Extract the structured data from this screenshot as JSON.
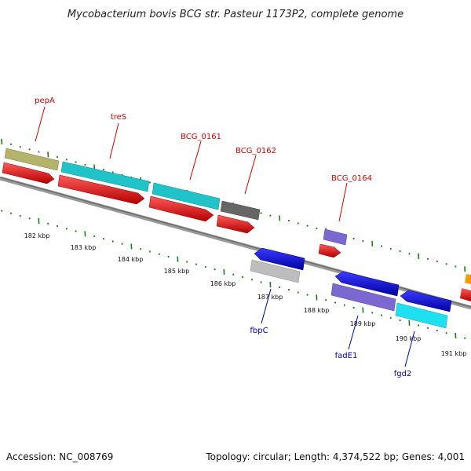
{
  "title": "Mycobacterium bovis BCG str. Pasteur 1173P2, complete genome",
  "footer": {
    "accession": "Accession: NC_008769",
    "summary": "Topology: circular; Length: 4,374,522 bp; Genes: 4,001"
  },
  "colors": {
    "backbone": "#808080",
    "tick": "#1f7a1f",
    "label_top": "#cc0000",
    "label_bottom": "#0000aa"
  },
  "scale_ticks": [
    "182 kbp",
    "183 kbp",
    "184 kbp",
    "185 kbp",
    "186 kbp",
    "187 kbp",
    "188 kbp",
    "189 kbp",
    "190 kbp",
    "191 kbp"
  ],
  "genes_top": [
    {
      "name": "pepA",
      "color": "#e60000",
      "feature_color": "#b3b36b"
    },
    {
      "name": "treS",
      "color": "#e60000",
      "feature_color": "#20c4c8"
    },
    {
      "name": "BCG_0161",
      "color": "#e60000",
      "feature_color": "#20c4c8"
    },
    {
      "name": "BCG_0162",
      "color": "#e60000",
      "feature_color": "#666666"
    },
    {
      "name": "BCG_0164",
      "color": "#e60000",
      "feature_color": "#7b68d0"
    }
  ],
  "genes_bottom": [
    {
      "name": "fbpC",
      "color": "#0000e0",
      "feature_color": "#bdbdbd"
    },
    {
      "name": "fadE1",
      "color": "#0000e0",
      "feature_color": "#7b68d0"
    },
    {
      "name": "fgd2",
      "color": "#0000e0",
      "feature_color": "#1fe0f0"
    }
  ]
}
